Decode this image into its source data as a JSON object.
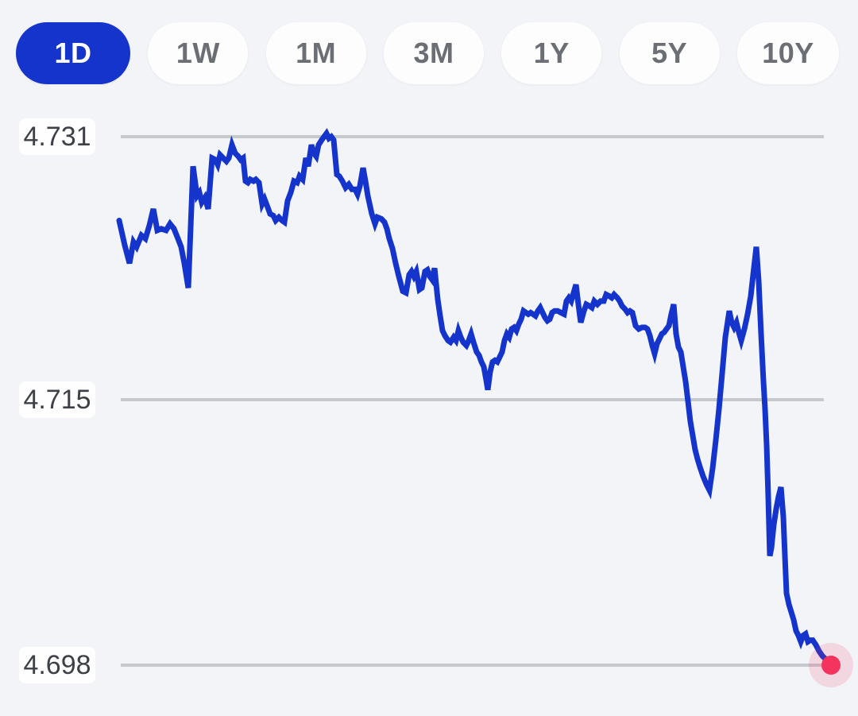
{
  "app": {
    "background_color": "#F2F4F8",
    "accent_color": "#1434CB"
  },
  "time_range_selector": {
    "options": [
      {
        "label": "1D",
        "selected": true
      },
      {
        "label": "1W",
        "selected": false
      },
      {
        "label": "1M",
        "selected": false
      },
      {
        "label": "3M",
        "selected": false
      },
      {
        "label": "1Y",
        "selected": false
      },
      {
        "label": "5Y",
        "selected": false
      },
      {
        "label": "10Y",
        "selected": false
      }
    ],
    "selected_bg": "#1434CB",
    "selected_text": "#FFFFFF",
    "unselected_bg": "#FDFDFE",
    "unselected_text": "#6B6E74"
  },
  "chart_data": {
    "type": "line",
    "title": "",
    "legend": false,
    "grid": true,
    "y_axis": {
      "tick_labels": [
        "4.731",
        "4.715",
        "4.698"
      ],
      "tick_values": [
        4.731,
        4.715,
        4.698
      ],
      "range_shown": [
        4.698,
        4.731
      ],
      "gridline_color": "#C5C8CD"
    },
    "x_axis": {
      "labels_visible": false,
      "note": "intraday (1D) time axis, no tick labels shown; point x values are horizontal pixel positions"
    },
    "series": [
      {
        "name": "price",
        "color": "#1434CB",
        "stroke_width": 7,
        "points": [
          [
            150,
            4.7259
          ],
          [
            157,
            4.7244
          ],
          [
            163,
            4.7233
          ],
          [
            168,
            4.7246
          ],
          [
            172,
            4.7243
          ],
          [
            178,
            4.725
          ],
          [
            183,
            4.7248
          ],
          [
            188,
            4.7256
          ],
          [
            193,
            4.7266
          ],
          [
            198,
            4.7253
          ],
          [
            203,
            4.7254
          ],
          [
            209,
            4.7253
          ],
          [
            214,
            4.7257
          ],
          [
            219,
            4.7254
          ],
          [
            224,
            4.7248
          ],
          [
            228,
            4.7243
          ],
          [
            232,
            4.7233
          ],
          [
            235,
            4.7224
          ],
          [
            237,
            4.7218
          ],
          [
            243,
            4.7292
          ],
          [
            248,
            4.7274
          ],
          [
            251,
            4.7276
          ],
          [
            254,
            4.727
          ],
          [
            258,
            4.7273
          ],
          [
            262,
            4.7266
          ],
          [
            267,
            4.7297
          ],
          [
            271,
            4.7296
          ],
          [
            274,
            4.7293
          ],
          [
            277,
            4.7299
          ],
          [
            281,
            4.7297
          ],
          [
            285,
            4.7295
          ],
          [
            288,
            4.7297
          ],
          [
            292,
            4.7305
          ],
          [
            296,
            4.73
          ],
          [
            300,
            4.7298
          ],
          [
            303,
            4.7296
          ],
          [
            306,
            4.7297
          ],
          [
            309,
            4.7283
          ],
          [
            312,
            4.7282
          ],
          [
            315,
            4.7284
          ],
          [
            319,
            4.7283
          ],
          [
            322,
            4.7284
          ],
          [
            326,
            4.7282
          ],
          [
            330,
            4.7269
          ],
          [
            333,
            4.7272
          ],
          [
            337,
            4.7267
          ],
          [
            340,
            4.7263
          ],
          [
            344,
            4.7262
          ],
          [
            347,
            4.7259
          ],
          [
            351,
            4.7261
          ],
          [
            355,
            4.7259
          ],
          [
            358,
            4.7258
          ],
          [
            362,
            4.7271
          ],
          [
            366,
            4.7276
          ],
          [
            370,
            4.7283
          ],
          [
            374,
            4.7282
          ],
          [
            377,
            4.7286
          ],
          [
            381,
            4.7284
          ],
          [
            385,
            4.7297
          ],
          [
            388,
            4.7292
          ],
          [
            392,
            4.7305
          ],
          [
            395,
            4.73
          ],
          [
            398,
            4.7298
          ],
          [
            401,
            4.7305
          ],
          [
            405,
            4.7308
          ],
          [
            408,
            4.731
          ],
          [
            411,
            4.7312
          ],
          [
            414,
            4.7309
          ],
          [
            417,
            4.731
          ],
          [
            420,
            4.7308
          ],
          [
            424,
            4.7287
          ],
          [
            427,
            4.7286
          ],
          [
            431,
            4.7283
          ],
          [
            435,
            4.7279
          ],
          [
            439,
            4.7281
          ],
          [
            443,
            4.7278
          ],
          [
            447,
            4.7278
          ],
          [
            450,
            4.7275
          ],
          [
            453,
            4.728
          ],
          [
            457,
            4.7291
          ],
          [
            460,
            4.7283
          ],
          [
            463,
            4.7274
          ],
          [
            468,
            4.7263
          ],
          [
            472,
            4.7257
          ],
          [
            475,
            4.7261
          ],
          [
            480,
            4.726
          ],
          [
            484,
            4.7258
          ],
          [
            487,
            4.7254
          ],
          [
            490,
            4.7248
          ],
          [
            494,
            4.7242
          ],
          [
            498,
            4.7233
          ],
          [
            502,
            4.7225
          ],
          [
            507,
            4.7216
          ],
          [
            511,
            4.7215
          ],
          [
            515,
            4.7226
          ],
          [
            518,
            4.7228
          ],
          [
            521,
            4.7225
          ],
          [
            524,
            4.7228
          ],
          [
            528,
            4.7217
          ],
          [
            531,
            4.7218
          ],
          [
            535,
            4.7228
          ],
          [
            538,
            4.7229
          ],
          [
            541,
            4.7225
          ],
          [
            544,
            4.7223
          ],
          [
            547,
            4.723
          ],
          [
            551,
            4.7211
          ],
          [
            554,
            4.7201
          ],
          [
            557,
            4.7192
          ],
          [
            560,
            4.7189
          ],
          [
            564,
            4.7186
          ],
          [
            567,
            4.7185
          ],
          [
            571,
            4.7188
          ],
          [
            574,
            4.7186
          ],
          [
            577,
            4.7192
          ],
          [
            580,
            4.7188
          ],
          [
            583,
            4.7185
          ],
          [
            587,
            4.7183
          ],
          [
            590,
            4.7186
          ],
          [
            593,
            4.719
          ],
          [
            596,
            4.7185
          ],
          [
            600,
            4.7179
          ],
          [
            603,
            4.7177
          ],
          [
            606,
            4.7173
          ],
          [
            609,
            4.717
          ],
          [
            612,
            4.7162
          ],
          [
            614,
            4.7156
          ],
          [
            617,
            4.7167
          ],
          [
            620,
            4.7173
          ],
          [
            623,
            4.7174
          ],
          [
            626,
            4.7173
          ],
          [
            629,
            4.7176
          ],
          [
            632,
            4.7179
          ],
          [
            635,
            4.7186
          ],
          [
            638,
            4.719
          ],
          [
            641,
            4.7188
          ],
          [
            644,
            4.7193
          ],
          [
            647,
            4.7194
          ],
          [
            650,
            4.7192
          ],
          [
            653,
            4.7196
          ],
          [
            656,
            4.7199
          ],
          [
            659,
            4.7204
          ],
          [
            662,
            4.7203
          ],
          [
            665,
            4.7202
          ],
          [
            668,
            4.7203
          ],
          [
            671,
            4.7202
          ],
          [
            674,
            4.7201
          ],
          [
            677,
            4.7204
          ],
          [
            680,
            4.7206
          ],
          [
            683,
            4.7203
          ],
          [
            686,
            4.72
          ],
          [
            689,
            4.7198
          ],
          [
            692,
            4.7199
          ],
          [
            695,
            4.7203
          ],
          [
            698,
            4.7204
          ],
          [
            702,
            4.7204
          ],
          [
            706,
            4.7203
          ],
          [
            710,
            4.7202
          ],
          [
            713,
            4.721
          ],
          [
            716,
            4.7212
          ],
          [
            719,
            4.721
          ],
          [
            722,
            4.7215
          ],
          [
            725,
            4.722
          ],
          [
            728,
            4.7208
          ],
          [
            731,
            4.7197
          ],
          [
            735,
            4.7204
          ],
          [
            738,
            4.7208
          ],
          [
            742,
            4.7207
          ],
          [
            745,
            4.7206
          ],
          [
            748,
            4.721
          ],
          [
            752,
            4.7208
          ],
          [
            756,
            4.721
          ],
          [
            760,
            4.721
          ],
          [
            763,
            4.7214
          ],
          [
            767,
            4.7213
          ],
          [
            770,
            4.7212
          ],
          [
            773,
            4.7214
          ],
          [
            777,
            4.7212
          ],
          [
            780,
            4.721
          ],
          [
            783,
            4.7207
          ],
          [
            787,
            4.7205
          ],
          [
            790,
            4.7203
          ],
          [
            793,
            4.7204
          ],
          [
            796,
            4.7203
          ],
          [
            800,
            4.7195
          ],
          [
            804,
            4.7193
          ],
          [
            808,
            4.7194
          ],
          [
            812,
            4.7194
          ],
          [
            815,
            4.7193
          ],
          [
            818,
            4.7189
          ],
          [
            821,
            4.7183
          ],
          [
            824,
            4.7178
          ],
          [
            827,
            4.7184
          ],
          [
            830,
            4.7187
          ],
          [
            833,
            4.719
          ],
          [
            836,
            4.7191
          ],
          [
            839,
            4.7193
          ],
          [
            842,
            4.7195
          ],
          [
            845,
            4.7202
          ],
          [
            848,
            4.7208
          ],
          [
            851,
            4.719
          ],
          [
            854,
            4.7182
          ],
          [
            857,
            4.7179
          ],
          [
            860,
            4.717
          ],
          [
            863,
            4.7161
          ],
          [
            866,
            4.7149
          ],
          [
            869,
            4.7136
          ],
          [
            872,
            4.7127
          ],
          [
            875,
            4.7118
          ],
          [
            878,
            4.7112
          ],
          [
            881,
            4.7107
          ],
          [
            885,
            4.7101
          ],
          [
            889,
            4.7096
          ],
          [
            893,
            4.7092
          ],
          [
            897,
            4.7106
          ],
          [
            901,
            4.7124
          ],
          [
            905,
            4.7144
          ],
          [
            909,
            4.7166
          ],
          [
            913,
            4.7188
          ],
          [
            918,
            4.7204
          ],
          [
            921,
            4.7197
          ],
          [
            924,
            4.7194
          ],
          [
            927,
            4.7197
          ],
          [
            930,
            4.7191
          ],
          [
            933,
            4.7186
          ],
          [
            937,
            4.7193
          ],
          [
            941,
            4.7202
          ],
          [
            945,
            4.7213
          ],
          [
            948,
            4.7226
          ],
          [
            952,
            4.7243
          ],
          [
            955,
            4.7222
          ],
          [
            958,
            4.719
          ],
          [
            961,
            4.7161
          ],
          [
            963,
            4.7144
          ],
          [
            965,
            4.7121
          ],
          [
            967,
            4.7088
          ],
          [
            969,
            4.705
          ],
          [
            971,
            4.7055
          ],
          [
            974,
            4.707
          ],
          [
            977,
            4.708
          ],
          [
            980,
            4.7088
          ],
          [
            983,
            4.7094
          ],
          [
            986,
            4.7075
          ],
          [
            988,
            4.705
          ],
          [
            990,
            4.7026
          ],
          [
            993,
            4.7019
          ],
          [
            996,
            4.7014
          ],
          [
            999,
            4.7009
          ],
          [
            1002,
            4.7002
          ],
          [
            1005,
            4.6999
          ],
          [
            1008,
            4.6995
          ],
          [
            1011,
            4.6999
          ],
          [
            1014,
            4.7
          ],
          [
            1017,
            4.6995
          ],
          [
            1020,
            4.6996
          ],
          [
            1023,
            4.6996
          ],
          [
            1027,
            4.6993
          ],
          [
            1031,
            4.6989
          ],
          [
            1035,
            4.6986
          ],
          [
            1039,
            4.6984
          ],
          [
            1043,
            4.6982
          ],
          [
            1046,
            4.698
          ]
        ]
      }
    ],
    "stats": {
      "high": 4.7312,
      "low": 4.698,
      "last": 4.698
    },
    "last_value_marker": {
      "x": 1046,
      "value": 4.698,
      "dot_color": "#F4335F",
      "halo_color": "rgba(244,51,95,0.15)"
    }
  }
}
